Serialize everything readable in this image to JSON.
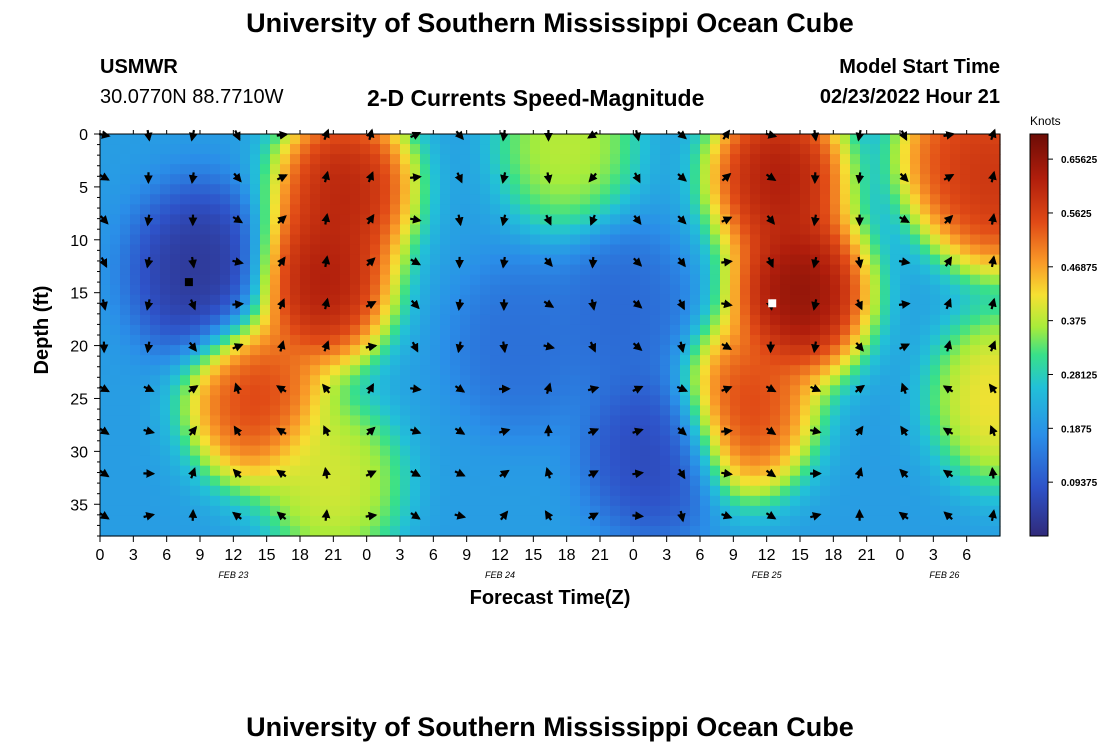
{
  "header": {
    "title": "University of Southern Mississippi Ocean Cube",
    "station": "USMWR",
    "coords": "30.0770N  88.7710W",
    "subtitle": "2-D Currents Speed-Magnitude",
    "model_label": "Model Start Time",
    "model_time": "02/23/2022 Hour 21"
  },
  "footer": {
    "title": "University of Southern Mississippi Ocean Cube"
  },
  "chart_data": {
    "type": "heatmap",
    "variable": "Current speed magnitude with direction vectors",
    "xlabel": "Forecast Time(Z)",
    "ylabel": "Depth (ft)",
    "x_hours": [
      0,
      81
    ],
    "ylim": [
      38,
      0
    ],
    "yticks": [
      0,
      5,
      10,
      15,
      20,
      25,
      30,
      35
    ],
    "xtick_labels": [
      "0",
      "3",
      "6",
      "9",
      "12",
      "15",
      "18",
      "21",
      "0",
      "3",
      "6",
      "9",
      "12",
      "15",
      "18",
      "21",
      "0",
      "3",
      "6",
      "9",
      "12",
      "15",
      "18",
      "21",
      "0",
      "3",
      "6"
    ],
    "date_labels": [
      {
        "text": "FEB 23",
        "hour": 12
      },
      {
        "text": "FEB 24",
        "hour": 36
      },
      {
        "text": "FEB 25",
        "hour": 60
      },
      {
        "text": "FEB 26",
        "hour": 76
      }
    ],
    "colorbar": {
      "unit": "Knots",
      "range": [
        0,
        0.7
      ],
      "ticks": [
        "0.65625",
        "0.5625",
        "0.46875",
        "0.375",
        "0.28125",
        "0.1875",
        "0.09375"
      ],
      "tick_values": [
        0.65625,
        0.5625,
        0.46875,
        0.375,
        0.28125,
        0.1875,
        0.09375
      ]
    },
    "speed_features": [
      {
        "hour": 20,
        "depth": 14,
        "speed": 0.68
      },
      {
        "hour": 22,
        "depth": 5,
        "speed": 0.66
      },
      {
        "hour": 14,
        "depth": 25,
        "speed": 0.6
      },
      {
        "hour": 21,
        "depth": 33,
        "speed": 0.42
      },
      {
        "hour": 63,
        "depth": 15,
        "speed": 0.72
      },
      {
        "hour": 61,
        "depth": 4,
        "speed": 0.68
      },
      {
        "hour": 58,
        "depth": 26,
        "speed": 0.6
      },
      {
        "hour": 81,
        "depth": 5,
        "speed": 0.62
      },
      {
        "hour": 78,
        "depth": 2,
        "speed": 0.6
      },
      {
        "hour": 81,
        "depth": 25,
        "speed": 0.45
      },
      {
        "hour": 42,
        "depth": 1,
        "speed": 0.4
      },
      {
        "hour": 9,
        "depth": 13,
        "speed": 0.01
      },
      {
        "hour": 38,
        "depth": 20,
        "speed": 0.12
      },
      {
        "hour": 50,
        "depth": 30,
        "speed": 0.05
      },
      {
        "hour": 47,
        "depth": 17,
        "speed": 0.11
      }
    ],
    "min_marker": {
      "hour": 8,
      "depth": 14
    },
    "max_marker": {
      "hour": 60.5,
      "depth": 16
    },
    "vector_hours": [
      0,
      4,
      8,
      12,
      16,
      20,
      24,
      28,
      32,
      36,
      40,
      44,
      48,
      52,
      56,
      60,
      64,
      68,
      72,
      76,
      80
    ],
    "vector_depths": [
      0,
      4,
      8,
      12,
      16,
      20,
      24,
      28,
      32,
      36
    ]
  }
}
